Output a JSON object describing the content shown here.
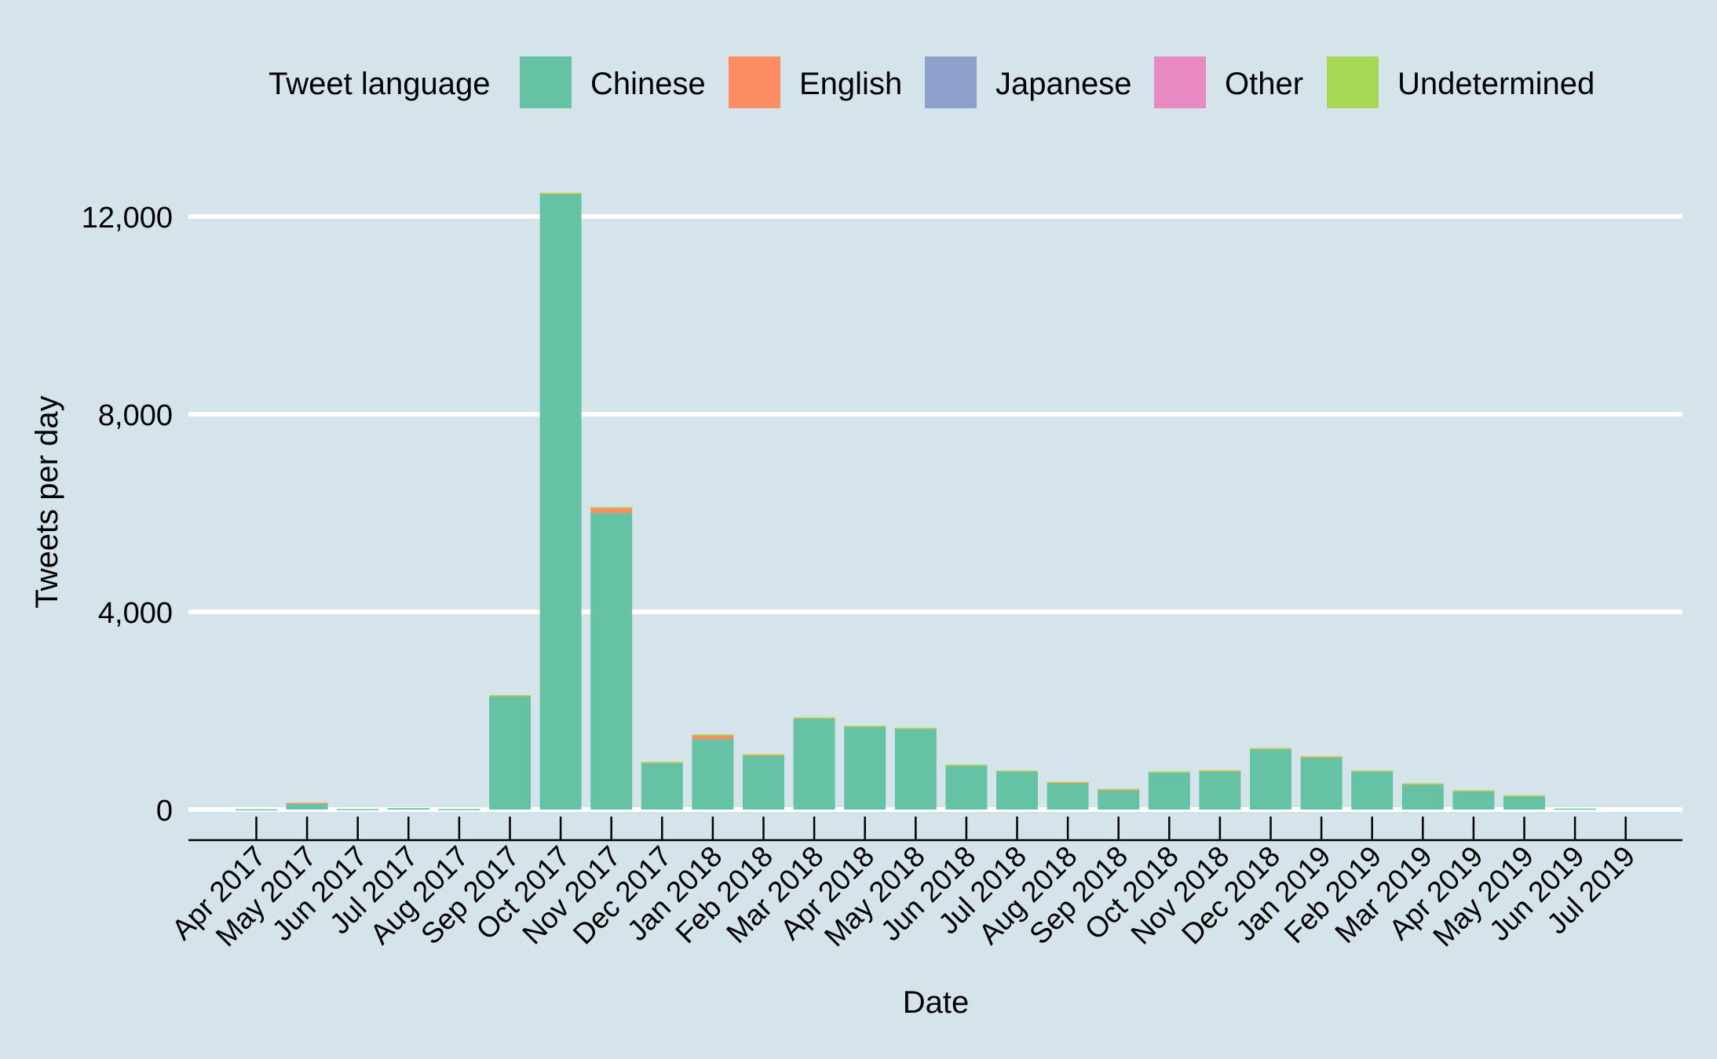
{
  "chart_data": {
    "type": "bar",
    "stacked": true,
    "title": "",
    "xlabel": "Date",
    "ylabel": "Tweets per day",
    "ylim": [
      0,
      12500
    ],
    "yticks": [
      0,
      4000,
      8000,
      12000
    ],
    "ytick_labels": [
      "0",
      "4,000",
      "8,000",
      "12,000"
    ],
    "grid": "horizontal",
    "legend": {
      "title": "Tweet language",
      "placement": "top"
    },
    "categories": [
      "Apr 2017",
      "May 2017",
      "Jun 2017",
      "Jul 2017",
      "Aug 2017",
      "Sep 2017",
      "Oct 2017",
      "Nov 2017",
      "Dec 2017",
      "Jan 2018",
      "Feb 2018",
      "Mar 2018",
      "Apr 2018",
      "May 2018",
      "Jun 2018",
      "Jul 2018",
      "Aug 2018",
      "Sep 2018",
      "Oct 2018",
      "Nov 2018",
      "Dec 2018",
      "Jan 2019",
      "Feb 2019",
      "Mar 2019",
      "Apr 2019",
      "May 2019",
      "Jun 2019",
      "Jul 2019"
    ],
    "series": [
      {
        "name": "Chinese",
        "color": "#66c2a5",
        "values": [
          5,
          130,
          10,
          30,
          10,
          2300,
          12450,
          6000,
          950,
          1420,
          1090,
          1850,
          1680,
          1640,
          900,
          780,
          540,
          400,
          760,
          780,
          1230,
          1060,
          780,
          520,
          380,
          280,
          20,
          0
        ]
      },
      {
        "name": "English",
        "color": "#fc8d62",
        "values": [
          0,
          5,
          0,
          0,
          0,
          10,
          20,
          100,
          10,
          90,
          15,
          10,
          10,
          10,
          5,
          5,
          5,
          5,
          5,
          5,
          5,
          5,
          5,
          5,
          5,
          5,
          0,
          0
        ]
      },
      {
        "name": "Japanese",
        "color": "#8da0cb",
        "values": [
          0,
          0,
          0,
          0,
          0,
          0,
          0,
          0,
          0,
          0,
          0,
          0,
          0,
          0,
          0,
          0,
          0,
          0,
          0,
          0,
          0,
          0,
          0,
          0,
          0,
          0,
          0,
          0
        ]
      },
      {
        "name": "Other",
        "color": "#e78ac3",
        "values": [
          0,
          0,
          0,
          0,
          0,
          0,
          0,
          0,
          0,
          0,
          0,
          0,
          0,
          0,
          0,
          0,
          0,
          0,
          0,
          0,
          0,
          0,
          0,
          0,
          0,
          0,
          0,
          0
        ]
      },
      {
        "name": "Undetermined",
        "color": "#a6d854",
        "values": [
          0,
          0,
          0,
          0,
          0,
          5,
          10,
          20,
          5,
          10,
          15,
          5,
          5,
          5,
          5,
          5,
          15,
          15,
          5,
          10,
          10,
          15,
          5,
          5,
          5,
          5,
          0,
          0
        ]
      }
    ]
  },
  "colors": {
    "background": "#d5e4eb",
    "gridline": "#ffffff",
    "axis": "#000000"
  }
}
